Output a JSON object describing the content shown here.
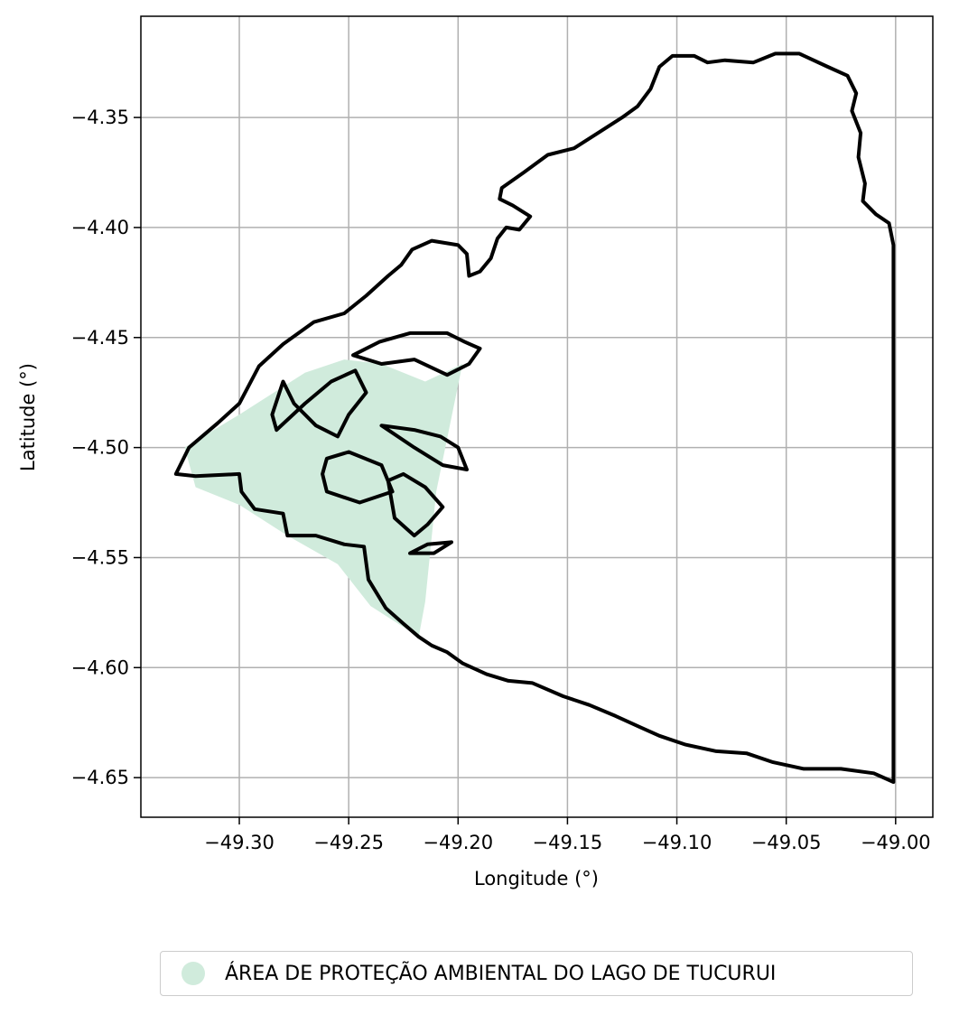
{
  "chart_data": {
    "type": "map",
    "xlabel": "Longitude (°)",
    "ylabel": "Latitude (°)",
    "xlim": [
      -49.345,
      -48.983
    ],
    "ylim": [
      -4.668,
      -4.304
    ],
    "xticks": [
      -49.3,
      -49.25,
      -49.2,
      -49.15,
      -49.1,
      -49.05,
      -49.0
    ],
    "xtick_labels": [
      "−49.30",
      "−49.25",
      "−49.20",
      "−49.15",
      "−49.10",
      "−49.05",
      "−49.00"
    ],
    "yticks": [
      -4.35,
      -4.4,
      -4.45,
      -4.5,
      -4.55,
      -4.6,
      -4.65
    ],
    "ytick_labels": [
      "−4.35",
      "−4.40",
      "−4.45",
      "−4.50",
      "−4.55",
      "−4.60",
      "−4.65"
    ],
    "grid": true,
    "legend_position": "below",
    "layers": [
      {
        "name": "ÁREA DE PROTEÇÃO AMBIENTAL DO LAGO DE TUCURUI",
        "fill": "#d0ebdc",
        "polygon": [
          [
            -49.325,
            -4.5
          ],
          [
            -49.3,
            -4.485
          ],
          [
            -49.27,
            -4.466
          ],
          [
            -49.252,
            -4.46
          ],
          [
            -49.235,
            -4.462
          ],
          [
            -49.215,
            -4.47
          ],
          [
            -49.198,
            -4.462
          ],
          [
            -49.21,
            -4.52
          ],
          [
            -49.215,
            -4.57
          ],
          [
            -49.218,
            -4.586
          ],
          [
            -49.24,
            -4.572
          ],
          [
            -49.255,
            -4.553
          ],
          [
            -49.278,
            -4.54
          ],
          [
            -49.3,
            -4.526
          ],
          [
            -49.32,
            -4.518
          ]
        ]
      }
    ],
    "outline": {
      "color": "#000000",
      "points": [
        [
          -49.291,
          -4.463
        ],
        [
          -49.28,
          -4.453
        ],
        [
          -49.266,
          -4.443
        ],
        [
          -49.252,
          -4.439
        ],
        [
          -49.242,
          -4.431
        ],
        [
          -49.232,
          -4.422
        ],
        [
          -49.226,
          -4.417
        ],
        [
          -49.221,
          -4.41
        ],
        [
          -49.212,
          -4.406
        ],
        [
          -49.2,
          -4.408
        ],
        [
          -49.196,
          -4.412
        ],
        [
          -49.195,
          -4.422
        ],
        [
          -49.19,
          -4.42
        ],
        [
          -49.185,
          -4.414
        ],
        [
          -49.182,
          -4.405
        ],
        [
          -49.178,
          -4.4
        ],
        [
          -49.172,
          -4.401
        ],
        [
          -49.167,
          -4.395
        ],
        [
          -49.175,
          -4.39
        ],
        [
          -49.181,
          -4.387
        ],
        [
          -49.18,
          -4.382
        ],
        [
          -49.17,
          -4.375
        ],
        [
          -49.159,
          -4.367
        ],
        [
          -49.147,
          -4.364
        ],
        [
          -49.136,
          -4.357
        ],
        [
          -49.125,
          -4.35
        ],
        [
          -49.118,
          -4.345
        ],
        [
          -49.112,
          -4.337
        ],
        [
          -49.108,
          -4.327
        ],
        [
          -49.102,
          -4.322
        ],
        [
          -49.092,
          -4.322
        ],
        [
          -49.086,
          -4.325
        ],
        [
          -49.078,
          -4.324
        ],
        [
          -49.065,
          -4.325
        ],
        [
          -49.055,
          -4.321
        ],
        [
          -49.044,
          -4.321
        ],
        [
          -49.031,
          -4.327
        ],
        [
          -49.022,
          -4.331
        ],
        [
          -49.018,
          -4.339
        ],
        [
          -49.02,
          -4.347
        ],
        [
          -49.016,
          -4.357
        ],
        [
          -49.017,
          -4.368
        ],
        [
          -49.014,
          -4.38
        ],
        [
          -49.015,
          -4.388
        ],
        [
          -49.009,
          -4.394
        ],
        [
          -49.003,
          -4.398
        ],
        [
          -49.001,
          -4.408
        ],
        [
          -49.001,
          -4.5
        ],
        [
          -49.001,
          -4.6
        ],
        [
          -49.001,
          -4.652
        ],
        [
          -49.01,
          -4.648
        ],
        [
          -49.025,
          -4.646
        ],
        [
          -49.042,
          -4.646
        ],
        [
          -49.056,
          -4.643
        ],
        [
          -49.068,
          -4.639
        ],
        [
          -49.082,
          -4.638
        ],
        [
          -49.096,
          -4.635
        ],
        [
          -49.108,
          -4.631
        ],
        [
          -49.117,
          -4.627
        ],
        [
          -49.128,
          -4.622
        ],
        [
          -49.14,
          -4.617
        ],
        [
          -49.152,
          -4.613
        ],
        [
          -49.166,
          -4.607
        ],
        [
          -49.177,
          -4.606
        ],
        [
          -49.187,
          -4.603
        ],
        [
          -49.198,
          -4.598
        ],
        [
          -49.205,
          -4.593
        ],
        [
          -49.212,
          -4.59
        ],
        [
          -49.218,
          -4.586
        ],
        [
          -49.225,
          -4.58
        ],
        [
          -49.233,
          -4.573
        ],
        [
          -49.241,
          -4.56
        ],
        [
          -49.243,
          -4.545
        ],
        [
          -49.252,
          -4.544
        ],
        [
          -49.265,
          -4.54
        ],
        [
          -49.278,
          -4.54
        ],
        [
          -49.28,
          -4.53
        ],
        [
          -49.293,
          -4.528
        ],
        [
          -49.299,
          -4.52
        ],
        [
          -49.3,
          -4.512
        ],
        [
          -49.32,
          -4.513
        ],
        [
          -49.329,
          -4.512
        ],
        [
          -49.323,
          -4.5
        ],
        [
          -49.31,
          -4.489
        ],
        [
          -49.3,
          -4.48
        ],
        [
          -49.291,
          -4.463
        ]
      ]
    },
    "islands": [
      [
        [
          -49.285,
          -4.485
        ],
        [
          -49.28,
          -4.47
        ],
        [
          -49.275,
          -4.48
        ],
        [
          -49.265,
          -4.49
        ],
        [
          -49.255,
          -4.495
        ],
        [
          -49.25,
          -4.485
        ],
        [
          -49.242,
          -4.475
        ],
        [
          -49.247,
          -4.465
        ],
        [
          -49.258,
          -4.47
        ],
        [
          -49.27,
          -4.48
        ],
        [
          -49.283,
          -4.492
        ],
        [
          -49.285,
          -4.485
        ]
      ],
      [
        [
          -49.248,
          -4.458
        ],
        [
          -49.236,
          -4.452
        ],
        [
          -49.222,
          -4.448
        ],
        [
          -49.205,
          -4.448
        ],
        [
          -49.197,
          -4.452
        ],
        [
          -49.19,
          -4.455
        ],
        [
          -49.195,
          -4.462
        ],
        [
          -49.205,
          -4.467
        ],
        [
          -49.22,
          -4.46
        ],
        [
          -49.235,
          -4.462
        ],
        [
          -49.248,
          -4.458
        ]
      ],
      [
        [
          -49.235,
          -4.49
        ],
        [
          -49.22,
          -4.492
        ],
        [
          -49.208,
          -4.495
        ],
        [
          -49.2,
          -4.5
        ],
        [
          -49.196,
          -4.51
        ],
        [
          -49.207,
          -4.508
        ],
        [
          -49.22,
          -4.5
        ],
        [
          -49.235,
          -4.49
        ]
      ],
      [
        [
          -49.26,
          -4.505
        ],
        [
          -49.25,
          -4.502
        ],
        [
          -49.235,
          -4.508
        ],
        [
          -49.23,
          -4.52
        ],
        [
          -49.245,
          -4.525
        ],
        [
          -49.26,
          -4.52
        ],
        [
          -49.262,
          -4.512
        ],
        [
          -49.26,
          -4.505
        ]
      ],
      [
        [
          -49.232,
          -4.515
        ],
        [
          -49.225,
          -4.512
        ],
        [
          -49.215,
          -4.518
        ],
        [
          -49.207,
          -4.527
        ],
        [
          -49.214,
          -4.535
        ],
        [
          -49.22,
          -4.54
        ],
        [
          -49.229,
          -4.532
        ],
        [
          -49.232,
          -4.515
        ]
      ],
      [
        [
          -49.222,
          -4.548
        ],
        [
          -49.214,
          -4.544
        ],
        [
          -49.203,
          -4.543
        ],
        [
          -49.211,
          -4.548
        ],
        [
          -49.222,
          -4.548
        ]
      ]
    ]
  },
  "legend": {
    "label": "ÁREA DE PROTEÇÃO AMBIENTAL DO LAGO DE TUCURUI",
    "color": "#d0ebdc"
  }
}
